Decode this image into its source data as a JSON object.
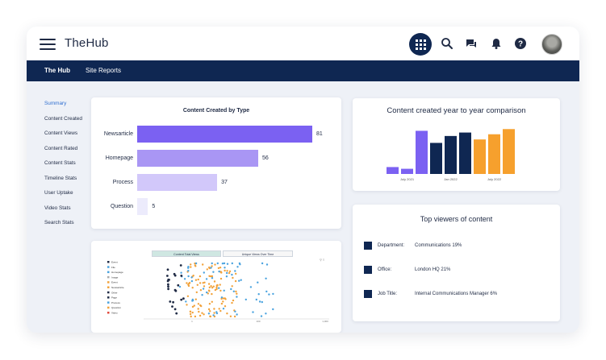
{
  "app": {
    "title": "TheHub"
  },
  "topbar": {
    "icons": [
      "apps-grid-icon",
      "search-icon",
      "chat-icon",
      "bell-icon",
      "help-icon",
      "user-avatar"
    ]
  },
  "nav": {
    "items": [
      "The Hub",
      "Site Reports"
    ],
    "active": "The Hub"
  },
  "sidebar": {
    "items": [
      "Summary",
      "Content Created",
      "Content Views",
      "Content Rated",
      "Content Stats",
      "Timeline Stats",
      "User Uptake",
      "Video Stats",
      "Search Stats"
    ],
    "active": "Summary"
  },
  "content_by_type": {
    "title": "Content Created by Type",
    "chart_data": {
      "type": "bar",
      "orientation": "horizontal",
      "title": "Content Created by Type",
      "categories": [
        "Newsarticle",
        "Homepage",
        "Process",
        "Question"
      ],
      "values": [
        81,
        56,
        37,
        5
      ],
      "colors": [
        "#7b61f2",
        "#a996f4",
        "#d2c8fa",
        "#ecebfc"
      ]
    }
  },
  "year_comparison": {
    "title": "Content created year to year comparison",
    "chart_data": {
      "type": "bar",
      "title": "Content created year to year comparison",
      "tick_labels": [
        "July 2021",
        "Jan 2022",
        "July 2022"
      ],
      "values": [
        4,
        3,
        25,
        18,
        22,
        24,
        20,
        23,
        26
      ],
      "colors": [
        "#7b61f2",
        "#7b61f2",
        "#7b61f2",
        "#0f2752",
        "#0f2752",
        "#0f2752",
        "#f6a02d",
        "#f6a02d",
        "#f6a02d"
      ],
      "ylim": [
        0,
        28
      ]
    }
  },
  "top_viewers": {
    "title": "Top viewers of content",
    "rows": [
      {
        "label": "Department:",
        "value": "Communications  19%"
      },
      {
        "label": "Office:",
        "value": "London HQ  21%"
      },
      {
        "label": "Job Title:",
        "value": "Internal Communications Manager  6%"
      }
    ]
  },
  "views_scatter": {
    "tabs": [
      "Content Total Views",
      "Unique Views Over Time"
    ],
    "active_tab": "Content Total Views",
    "chart_data": {
      "type": "scatter",
      "legend": [
        "Event",
        "File",
        "Homepage",
        "Image",
        "Event",
        "Newsarticle",
        "Other",
        "Page",
        "Process",
        "Question",
        "Video"
      ],
      "x_ticks": [
        "1",
        "100",
        "1,000"
      ],
      "series": [
        {
          "color": "#f2a23a"
        },
        {
          "color": "#4aa3df"
        },
        {
          "color": "#1f2a44"
        }
      ]
    }
  }
}
